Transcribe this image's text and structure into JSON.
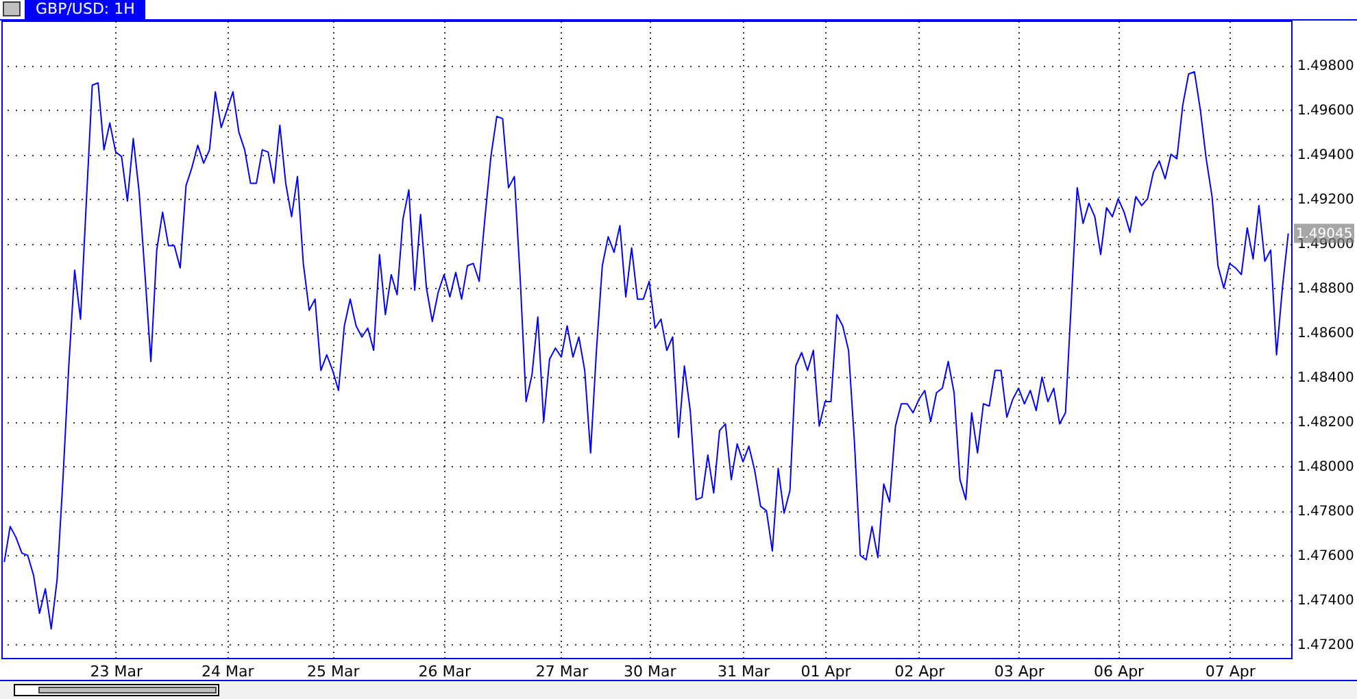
{
  "chart_data": {
    "type": "line",
    "title": "GBP/USD: 1H",
    "categories": [
      null,
      null,
      null,
      null,
      null,
      null,
      null,
      null,
      null,
      null,
      null,
      null,
      null,
      null,
      null,
      null,
      null,
      null,
      null,
      "23 Mar",
      null,
      null,
      null,
      null,
      null,
      null,
      null,
      null,
      null,
      null,
      null,
      null,
      null,
      null,
      null,
      null,
      null,
      null,
      "24 Mar",
      null,
      null,
      null,
      null,
      null,
      null,
      null,
      null,
      null,
      null,
      null,
      null,
      null,
      null,
      null,
      null,
      null,
      "25 Mar",
      null,
      null,
      null,
      null,
      null,
      null,
      null,
      null,
      null,
      null,
      null,
      null,
      null,
      null,
      null,
      null,
      null,
      null,
      "26 Mar",
      null,
      null,
      null,
      null,
      null,
      null,
      null,
      null,
      null,
      null,
      null,
      null,
      null,
      null,
      null,
      null,
      null,
      null,
      null,
      "27 Mar",
      null,
      null,
      null,
      null,
      null,
      null,
      null,
      null,
      null,
      null,
      null,
      null,
      null,
      null,
      "30 Mar",
      null,
      null,
      null,
      null,
      null,
      null,
      null,
      null,
      null,
      null,
      null,
      null,
      null,
      null,
      null,
      "31 Mar",
      null,
      null,
      null,
      null,
      null,
      null,
      null,
      null,
      null,
      null,
      null,
      null,
      null,
      "01 Apr",
      null,
      null,
      null,
      null,
      null,
      null,
      null,
      null,
      null,
      null,
      null,
      null,
      null,
      null,
      null,
      "02 Apr",
      null,
      null,
      null,
      null,
      null,
      null,
      null,
      null,
      null,
      null,
      null,
      null,
      null,
      null,
      null,
      null,
      "03 Apr",
      null,
      null,
      null,
      null,
      null,
      null,
      null,
      null,
      null,
      null,
      null,
      null,
      null,
      null,
      null,
      null,
      "06 Apr",
      null,
      null,
      null,
      null,
      null,
      null,
      null,
      null,
      null,
      null,
      null,
      null,
      null,
      null,
      null,
      null,
      null,
      null,
      "07 Apr",
      null,
      null,
      null,
      null,
      null,
      null,
      null,
      null,
      null,
      null
    ],
    "series": [
      {
        "color": "#0000ff",
        "values": [
          1.4757,
          1.4773,
          1.4768,
          1.4761,
          1.476,
          1.4751,
          1.4734,
          1.4745,
          1.4727,
          1.4749,
          1.4794,
          1.4845,
          1.4888,
          1.4866,
          1.4919,
          1.4971,
          1.4972,
          1.4942,
          1.4954,
          1.4941,
          1.4939,
          1.4919,
          1.4947,
          1.4923,
          1.4886,
          1.4847,
          1.4897,
          1.4914,
          1.4899,
          1.4899,
          1.4889,
          1.4926,
          1.4934,
          1.4944,
          1.4936,
          1.4942,
          1.4968,
          1.4952,
          1.496,
          1.4968,
          1.495,
          1.4942,
          1.4927,
          1.4927,
          1.4942,
          1.4941,
          1.4927,
          1.4953,
          1.4927,
          1.4912,
          1.493,
          1.4891,
          1.487,
          1.4875,
          1.4843,
          1.485,
          1.4843,
          1.4834,
          1.4863,
          1.4875,
          1.4863,
          1.4858,
          1.4862,
          1.4852,
          1.4895,
          1.4868,
          1.4886,
          1.4877,
          1.4911,
          1.4924,
          1.4879,
          1.4913,
          1.488,
          1.4865,
          1.4878,
          1.4886,
          1.4876,
          1.4887,
          1.4875,
          1.489,
          1.4891,
          1.4883,
          1.4912,
          1.4939,
          1.4957,
          1.4956,
          1.4925,
          1.493,
          1.4884,
          1.4829,
          1.4841,
          1.4867,
          1.482,
          1.4848,
          1.4853,
          1.4849,
          1.4863,
          1.4849,
          1.4858,
          1.4843,
          1.4806,
          1.4852,
          1.489,
          1.4903,
          1.4896,
          1.4908,
          1.4876,
          1.4898,
          1.4875,
          1.4875,
          1.4883,
          1.4862,
          1.4866,
          1.4852,
          1.4858,
          1.4813,
          1.4845,
          1.4825,
          1.4785,
          1.4786,
          1.4805,
          1.4788,
          1.4816,
          1.4819,
          1.4794,
          1.481,
          1.4802,
          1.4809,
          1.4798,
          1.4782,
          1.478,
          1.4762,
          1.4799,
          1.4779,
          1.4789,
          1.4845,
          1.4851,
          1.4843,
          1.4852,
          1.4818,
          1.4829,
          1.4829,
          1.4868,
          1.4863,
          1.4852,
          1.4811,
          1.476,
          1.4758,
          1.4773,
          1.4759,
          1.4792,
          1.4784,
          1.4818,
          1.4828,
          1.4828,
          1.4824,
          1.483,
          1.4834,
          1.482,
          1.4833,
          1.4835,
          1.4847,
          1.4833,
          1.4794,
          1.4785,
          1.4824,
          1.4806,
          1.4828,
          1.4827,
          1.4843,
          1.4843,
          1.4822,
          1.483,
          1.4835,
          1.4828,
          1.4834,
          1.4825,
          1.484,
          1.4829,
          1.4835,
          1.4819,
          1.4824,
          1.4874,
          1.4925,
          1.4909,
          1.4918,
          1.4912,
          1.4895,
          1.4916,
          1.4912,
          1.492,
          1.4914,
          1.4905,
          1.4921,
          1.4917,
          1.492,
          1.4932,
          1.4937,
          1.4929,
          1.494,
          1.4938,
          1.4962,
          1.4976,
          1.4977,
          1.496,
          1.4938,
          1.4921,
          1.489,
          1.488,
          1.4891,
          1.4889,
          1.4886,
          1.4907,
          1.4893,
          1.4917,
          1.4892,
          1.4897,
          1.485,
          1.488,
          1.49045
        ]
      }
    ],
    "ylim": [
      1.4714,
      1.5
    ],
    "yticks": [
      {
        "value": 1.472,
        "label": "1.47200"
      },
      {
        "value": 1.474,
        "label": "1.47400"
      },
      {
        "value": 1.476,
        "label": "1.47600"
      },
      {
        "value": 1.478,
        "label": "1.47800"
      },
      {
        "value": 1.48,
        "label": "1.48000"
      },
      {
        "value": 1.482,
        "label": "1.48200"
      },
      {
        "value": 1.484,
        "label": "1.48400"
      },
      {
        "value": 1.486,
        "label": "1.48600"
      },
      {
        "value": 1.488,
        "label": "1.48800"
      },
      {
        "value": 1.49,
        "label": "1.49000"
      },
      {
        "value": 1.492,
        "label": "1.49200"
      },
      {
        "value": 1.494,
        "label": "1.49400"
      },
      {
        "value": 1.496,
        "label": "1.49600"
      },
      {
        "value": 1.498,
        "label": "1.49800"
      }
    ],
    "grid": true,
    "annotations": [
      {
        "text": "1.49045",
        "y": 1.49045
      }
    ]
  }
}
